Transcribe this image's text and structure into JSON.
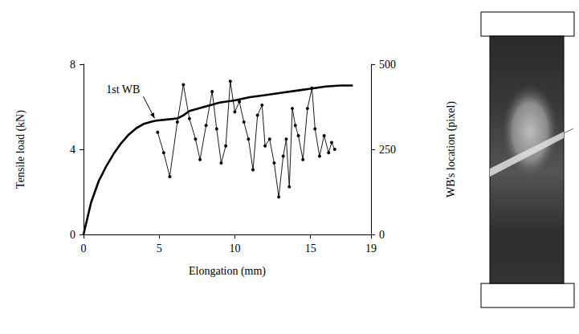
{
  "chart_data": {
    "type": "line",
    "x_label": "Elongation (mm)",
    "y_label": "Tensile load (kN)",
    "y2_label": "WB's location (pixel)",
    "xlim": [
      0,
      19
    ],
    "xticks": [
      0,
      5,
      10,
      15
    ],
    "ylim": [
      0,
      8
    ],
    "yticks": [
      0,
      4,
      8
    ],
    "y2lim": [
      0,
      500
    ],
    "y2ticks": [
      0,
      250,
      500
    ],
    "grid": false,
    "annotations": [
      {
        "text": "1st WB",
        "x": 4.8,
        "y": 5.35
      }
    ],
    "series": [
      {
        "type": "line",
        "color": "#000000",
        "marker": "none",
        "line_style": "solid",
        "x": [
          0,
          0.5,
          1,
          1.5,
          2,
          2.5,
          3,
          3.5,
          4,
          4.5,
          4.8,
          5.5,
          6.2,
          6.6,
          7,
          8,
          9,
          10,
          11,
          12,
          13,
          14,
          15,
          16,
          17,
          17.8
        ],
        "values": [
          0,
          1.5,
          2.5,
          3.2,
          3.8,
          4.3,
          4.7,
          5.0,
          5.2,
          5.3,
          5.35,
          5.4,
          5.45,
          5.6,
          5.8,
          6.0,
          6.2,
          6.3,
          6.45,
          6.55,
          6.65,
          6.75,
          6.85,
          6.95,
          7.0,
          7.0
        ]
      },
      {
        "type": "line",
        "axis": "y2",
        "color": "#000000",
        "marker": "circle",
        "line_style": "solid",
        "x": [
          4.9,
          5.3,
          5.7,
          6.2,
          6.6,
          7.0,
          7.4,
          7.7,
          8.1,
          8.5,
          8.8,
          9.1,
          9.4,
          9.7,
          10.0,
          10.3,
          10.6,
          10.9,
          11.2,
          11.5,
          11.8,
          12.0,
          12.3,
          12.6,
          12.9,
          13.2,
          13.4,
          13.6,
          13.8,
          14.0,
          14.2,
          14.5,
          14.8,
          15.1,
          15.3,
          15.6,
          15.9,
          16.2,
          16.4,
          16.6
        ],
        "values": [
          300,
          240,
          170,
          330,
          440,
          340,
          280,
          220,
          320,
          420,
          310,
          210,
          260,
          450,
          360,
          390,
          330,
          280,
          190,
          350,
          380,
          260,
          280,
          210,
          110,
          230,
          280,
          140,
          370,
          320,
          290,
          220,
          370,
          430,
          310,
          230,
          290,
          240,
          270,
          250
        ]
      }
    ]
  }
}
